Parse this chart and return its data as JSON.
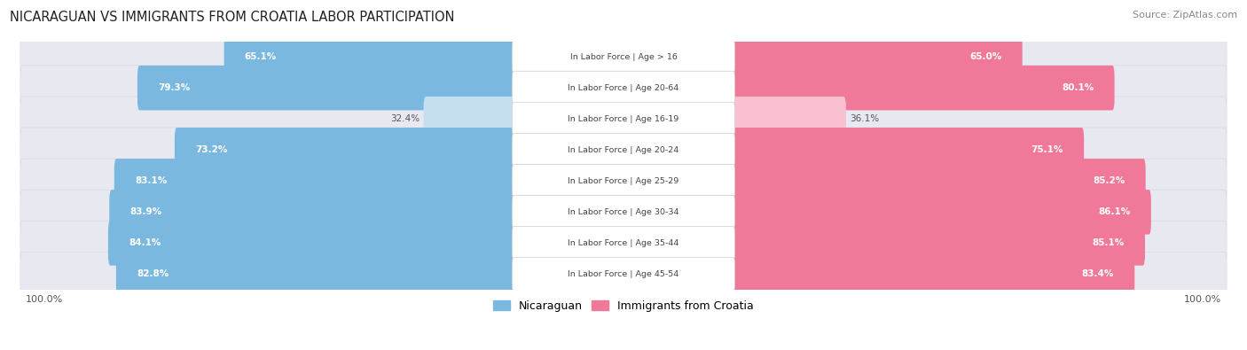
{
  "title": "NICARAGUAN VS IMMIGRANTS FROM CROATIA LABOR PARTICIPATION",
  "source": "Source: ZipAtlas.com",
  "categories": [
    "In Labor Force | Age > 16",
    "In Labor Force | Age 20-64",
    "In Labor Force | Age 16-19",
    "In Labor Force | Age 20-24",
    "In Labor Force | Age 25-29",
    "In Labor Force | Age 30-34",
    "In Labor Force | Age 35-44",
    "In Labor Force | Age 45-54"
  ],
  "nicaraguan_values": [
    65.1,
    79.3,
    32.4,
    73.2,
    83.1,
    83.9,
    84.1,
    82.8
  ],
  "croatia_values": [
    65.0,
    80.1,
    36.1,
    75.1,
    85.2,
    86.1,
    85.1,
    83.4
  ],
  "nicaraguan_color": "#7ab8e0",
  "nicaraguan_color_light": "#c5dff0",
  "croatia_color": "#f07898",
  "croatia_color_light": "#f8c0d0",
  "row_bg_color": "#e8e8f0",
  "max_value": 100.0,
  "footer_label": "100.0%",
  "legend_nicaraguan": "Nicaraguan",
  "legend_croatia": "Immigrants from Croatia"
}
